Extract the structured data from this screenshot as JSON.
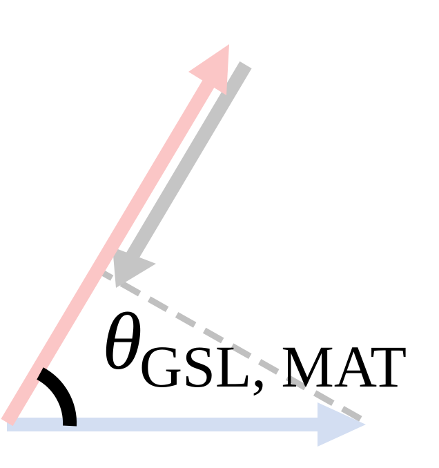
{
  "label": {
    "symbol": "θ",
    "subscript": "GSL, MAT"
  },
  "colors": {
    "red_arrow": "#fbc6c6",
    "gray_arrow": "#c5c5c5",
    "blue_arrow": "#d3def2",
    "dashed_line": "#c0c0c0",
    "angle_arc": "#000000"
  }
}
